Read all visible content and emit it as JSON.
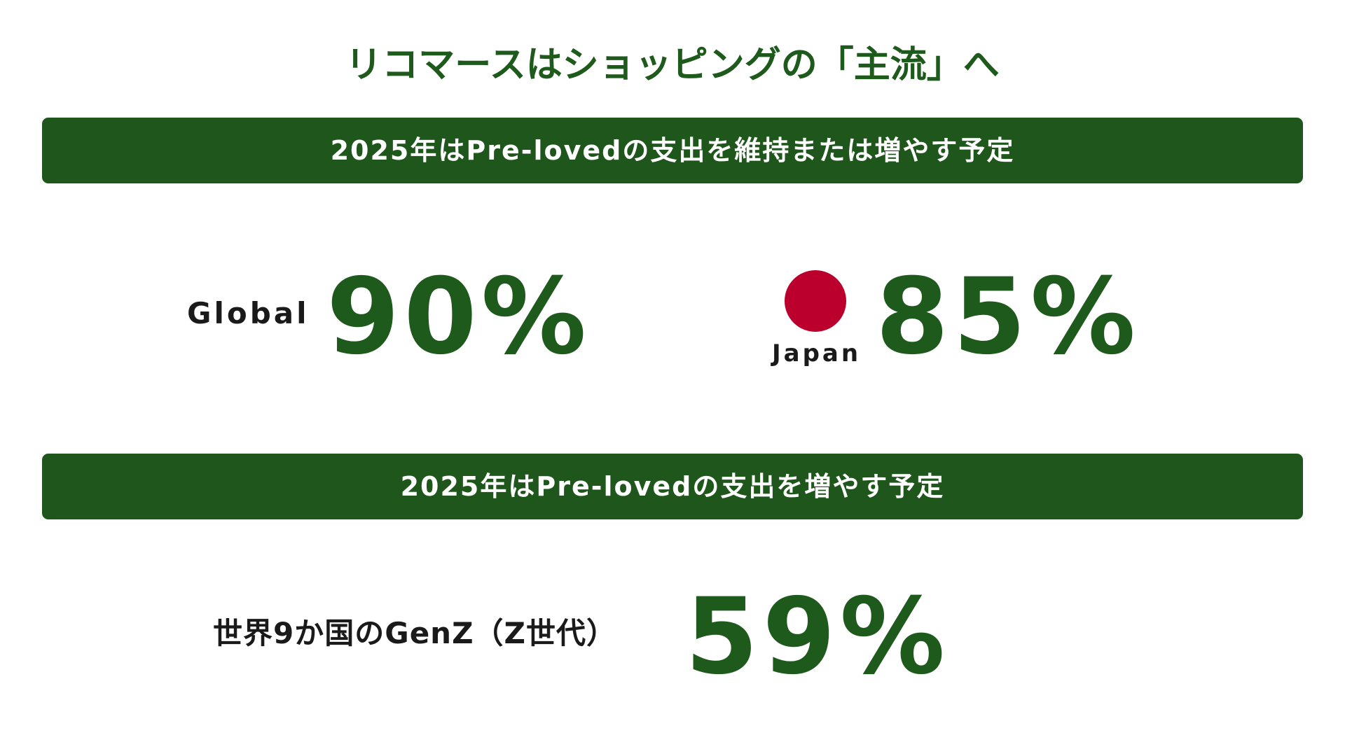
{
  "header": {
    "title": "リコマースはショッピングの「主流」へ"
  },
  "sections": [
    {
      "banner": "2025年はPre-lovedの支出を維持または増やす予定",
      "stats": [
        {
          "label": "Global",
          "value": "90%"
        },
        {
          "label": "Japan",
          "value": "85%"
        }
      ]
    },
    {
      "banner": "2025年はPre-lovedの支出を増やす予定",
      "stats": [
        {
          "label": "世界9か国のGenZ（Z世代）",
          "value": "59%"
        }
      ]
    }
  ]
}
